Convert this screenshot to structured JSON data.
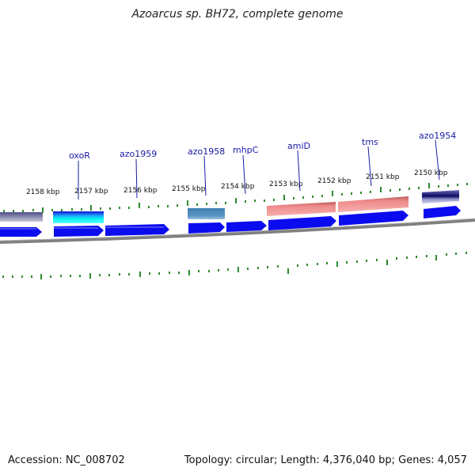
{
  "title": "Azoarcus sp. BH72, complete genome",
  "footer": {
    "accession": "Accession: NC_008702",
    "summary": "Topology: circular; Length: 4,376,040 bp; Genes: 4,057"
  },
  "kbp_labels": [
    "2158 kbp",
    "2157 kbp",
    "2156 kbp",
    "2155 kbp",
    "2154 kbp",
    "2153 kbp",
    "2152 kbp",
    "2151 kbp",
    "2150 kbp"
  ],
  "gene_labels": [
    "oxoR",
    "azo1959",
    "azo1958",
    "mhpC",
    "amiD",
    "tms",
    "azo1954"
  ],
  "colors": {
    "strand_arrow": "#0b0bf0",
    "backbone": "#808080",
    "tick": "#2e8b2e",
    "label_line": "#1a1aa6"
  }
}
